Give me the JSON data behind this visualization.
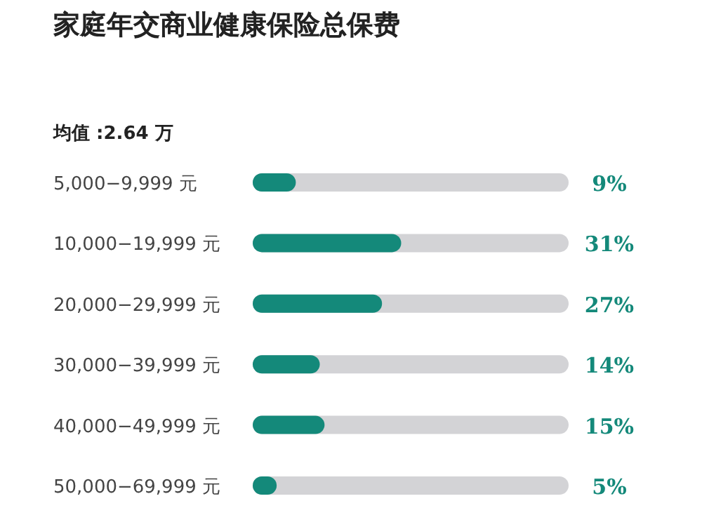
{
  "chart_data": {
    "type": "bar",
    "orientation": "horizontal",
    "title": "家庭年交商业健康保险总保费",
    "annotations": [
      "均值 :2.64 万"
    ],
    "categories": [
      "5,000−9,999 元",
      "10,000−19,999 元",
      "20,000−29,999 元",
      "30,000−39,999 元",
      "40,000−49,999 元",
      "50,000−69,999 元"
    ],
    "values": [
      9,
      31,
      27,
      14,
      15,
      5
    ],
    "value_labels": [
      "9%",
      "31%",
      "27%",
      "14%",
      "15%",
      "5%"
    ],
    "color": "#14897a"
  }
}
